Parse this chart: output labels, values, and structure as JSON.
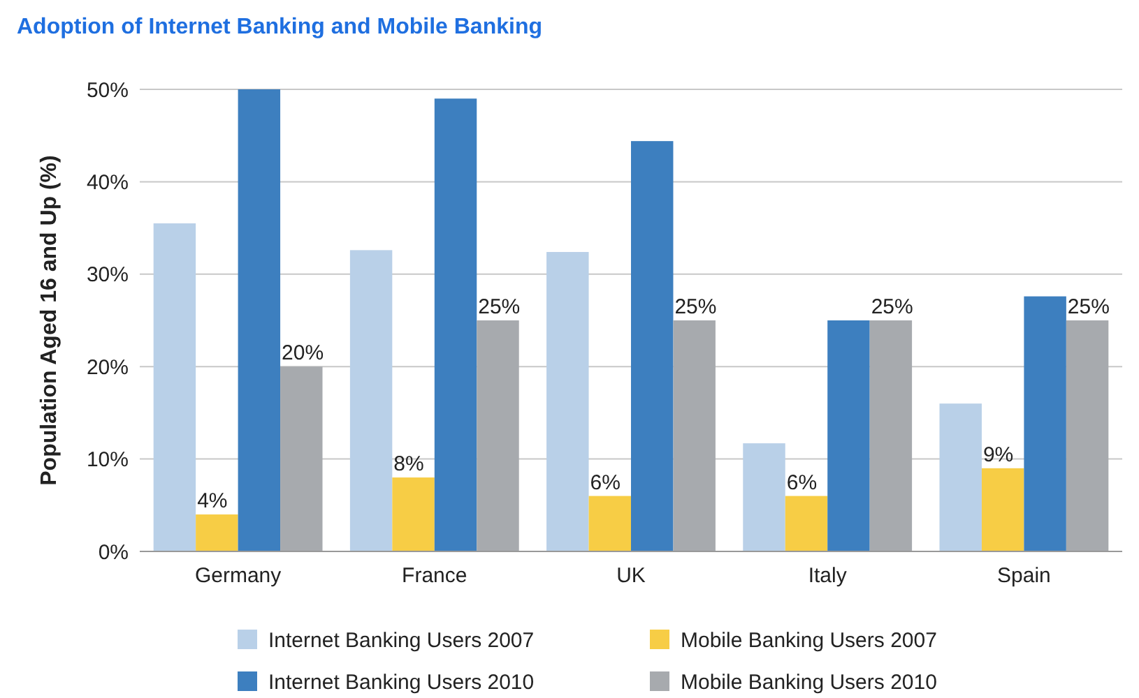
{
  "chart_data": {
    "type": "bar",
    "title": "Adoption of Internet Banking and Mobile Banking",
    "ylabel": "Population Aged 16 and Up (%)",
    "categories": [
      "Germany",
      "France",
      "UK",
      "Italy",
      "Spain"
    ],
    "series": [
      {
        "name": "Internet Banking Users 2007",
        "color": "#b9d0e8",
        "values": [
          35.5,
          32.6,
          32.4,
          11.7,
          16.0
        ]
      },
      {
        "name": "Mobile Banking Users 2007",
        "color": "#f7cd45",
        "values": [
          4,
          8,
          6,
          6,
          9
        ],
        "value_labels": [
          "4%",
          "8%",
          "6%",
          "6%",
          "9%"
        ]
      },
      {
        "name": "Internet Banking Users 2010",
        "color": "#3d7fbf",
        "values": [
          50,
          49,
          44.4,
          25,
          27.6
        ]
      },
      {
        "name": "Mobile Banking Users 2010",
        "color": "#a7aaae",
        "values": [
          20,
          25,
          25,
          25,
          25
        ],
        "value_labels": [
          "20%",
          "25%",
          "25%",
          "25%",
          "25%"
        ]
      }
    ],
    "ylim": [
      0,
      50
    ],
    "yticks": [
      {
        "value": 0,
        "label": "0%"
      },
      {
        "value": 10,
        "label": "10%"
      },
      {
        "value": 20,
        "label": "20%"
      },
      {
        "value": 30,
        "label": "30%"
      },
      {
        "value": 40,
        "label": "40%"
      },
      {
        "value": 50,
        "label": "50%"
      }
    ],
    "grid": "y",
    "legend": "bottom"
  }
}
